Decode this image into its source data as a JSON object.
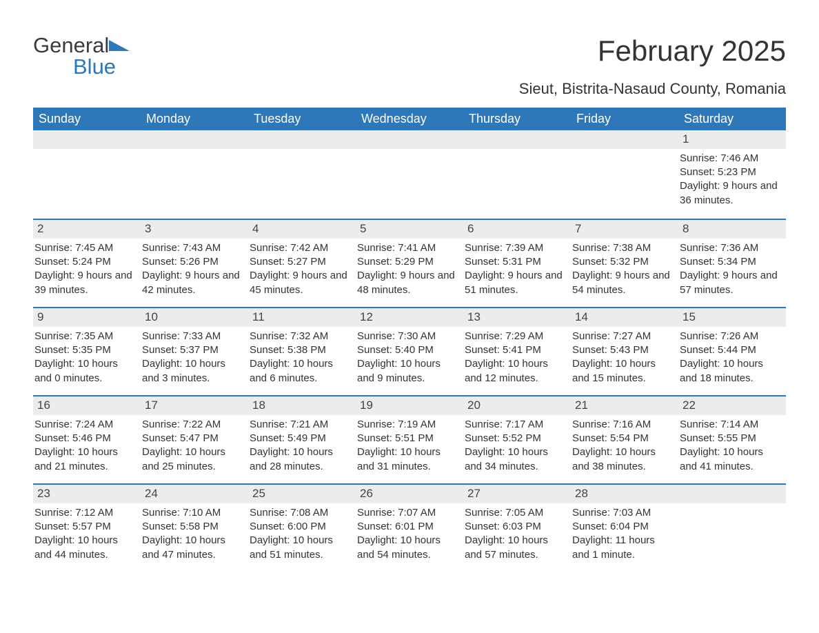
{
  "logo": {
    "text_general": "General",
    "text_blue": "Blue",
    "icon_color": "#2e77b8"
  },
  "title": "February 2025",
  "location": "Sieut, Bistrita-Nasaud County, Romania",
  "weekday_header_bg": "#2e77b8",
  "weekday_header_fg": "#ffffff",
  "daynum_bar_bg": "#ececec",
  "week_border_color": "#2e77b8",
  "text_color": "#333333",
  "background_color": "#ffffff",
  "weekdays": [
    "Sunday",
    "Monday",
    "Tuesday",
    "Wednesday",
    "Thursday",
    "Friday",
    "Saturday"
  ],
  "weeks": [
    [
      {
        "day": "",
        "sunrise": "",
        "sunset": "",
        "daylight": ""
      },
      {
        "day": "",
        "sunrise": "",
        "sunset": "",
        "daylight": ""
      },
      {
        "day": "",
        "sunrise": "",
        "sunset": "",
        "daylight": ""
      },
      {
        "day": "",
        "sunrise": "",
        "sunset": "",
        "daylight": ""
      },
      {
        "day": "",
        "sunrise": "",
        "sunset": "",
        "daylight": ""
      },
      {
        "day": "",
        "sunrise": "",
        "sunset": "",
        "daylight": ""
      },
      {
        "day": "1",
        "sunrise": "Sunrise: 7:46 AM",
        "sunset": "Sunset: 5:23 PM",
        "daylight": "Daylight: 9 hours and 36 minutes."
      }
    ],
    [
      {
        "day": "2",
        "sunrise": "Sunrise: 7:45 AM",
        "sunset": "Sunset: 5:24 PM",
        "daylight": "Daylight: 9 hours and 39 minutes."
      },
      {
        "day": "3",
        "sunrise": "Sunrise: 7:43 AM",
        "sunset": "Sunset: 5:26 PM",
        "daylight": "Daylight: 9 hours and 42 minutes."
      },
      {
        "day": "4",
        "sunrise": "Sunrise: 7:42 AM",
        "sunset": "Sunset: 5:27 PM",
        "daylight": "Daylight: 9 hours and 45 minutes."
      },
      {
        "day": "5",
        "sunrise": "Sunrise: 7:41 AM",
        "sunset": "Sunset: 5:29 PM",
        "daylight": "Daylight: 9 hours and 48 minutes."
      },
      {
        "day": "6",
        "sunrise": "Sunrise: 7:39 AM",
        "sunset": "Sunset: 5:31 PM",
        "daylight": "Daylight: 9 hours and 51 minutes."
      },
      {
        "day": "7",
        "sunrise": "Sunrise: 7:38 AM",
        "sunset": "Sunset: 5:32 PM",
        "daylight": "Daylight: 9 hours and 54 minutes."
      },
      {
        "day": "8",
        "sunrise": "Sunrise: 7:36 AM",
        "sunset": "Sunset: 5:34 PM",
        "daylight": "Daylight: 9 hours and 57 minutes."
      }
    ],
    [
      {
        "day": "9",
        "sunrise": "Sunrise: 7:35 AM",
        "sunset": "Sunset: 5:35 PM",
        "daylight": "Daylight: 10 hours and 0 minutes."
      },
      {
        "day": "10",
        "sunrise": "Sunrise: 7:33 AM",
        "sunset": "Sunset: 5:37 PM",
        "daylight": "Daylight: 10 hours and 3 minutes."
      },
      {
        "day": "11",
        "sunrise": "Sunrise: 7:32 AM",
        "sunset": "Sunset: 5:38 PM",
        "daylight": "Daylight: 10 hours and 6 minutes."
      },
      {
        "day": "12",
        "sunrise": "Sunrise: 7:30 AM",
        "sunset": "Sunset: 5:40 PM",
        "daylight": "Daylight: 10 hours and 9 minutes."
      },
      {
        "day": "13",
        "sunrise": "Sunrise: 7:29 AM",
        "sunset": "Sunset: 5:41 PM",
        "daylight": "Daylight: 10 hours and 12 minutes."
      },
      {
        "day": "14",
        "sunrise": "Sunrise: 7:27 AM",
        "sunset": "Sunset: 5:43 PM",
        "daylight": "Daylight: 10 hours and 15 minutes."
      },
      {
        "day": "15",
        "sunrise": "Sunrise: 7:26 AM",
        "sunset": "Sunset: 5:44 PM",
        "daylight": "Daylight: 10 hours and 18 minutes."
      }
    ],
    [
      {
        "day": "16",
        "sunrise": "Sunrise: 7:24 AM",
        "sunset": "Sunset: 5:46 PM",
        "daylight": "Daylight: 10 hours and 21 minutes."
      },
      {
        "day": "17",
        "sunrise": "Sunrise: 7:22 AM",
        "sunset": "Sunset: 5:47 PM",
        "daylight": "Daylight: 10 hours and 25 minutes."
      },
      {
        "day": "18",
        "sunrise": "Sunrise: 7:21 AM",
        "sunset": "Sunset: 5:49 PM",
        "daylight": "Daylight: 10 hours and 28 minutes."
      },
      {
        "day": "19",
        "sunrise": "Sunrise: 7:19 AM",
        "sunset": "Sunset: 5:51 PM",
        "daylight": "Daylight: 10 hours and 31 minutes."
      },
      {
        "day": "20",
        "sunrise": "Sunrise: 7:17 AM",
        "sunset": "Sunset: 5:52 PM",
        "daylight": "Daylight: 10 hours and 34 minutes."
      },
      {
        "day": "21",
        "sunrise": "Sunrise: 7:16 AM",
        "sunset": "Sunset: 5:54 PM",
        "daylight": "Daylight: 10 hours and 38 minutes."
      },
      {
        "day": "22",
        "sunrise": "Sunrise: 7:14 AM",
        "sunset": "Sunset: 5:55 PM",
        "daylight": "Daylight: 10 hours and 41 minutes."
      }
    ],
    [
      {
        "day": "23",
        "sunrise": "Sunrise: 7:12 AM",
        "sunset": "Sunset: 5:57 PM",
        "daylight": "Daylight: 10 hours and 44 minutes."
      },
      {
        "day": "24",
        "sunrise": "Sunrise: 7:10 AM",
        "sunset": "Sunset: 5:58 PM",
        "daylight": "Daylight: 10 hours and 47 minutes."
      },
      {
        "day": "25",
        "sunrise": "Sunrise: 7:08 AM",
        "sunset": "Sunset: 6:00 PM",
        "daylight": "Daylight: 10 hours and 51 minutes."
      },
      {
        "day": "26",
        "sunrise": "Sunrise: 7:07 AM",
        "sunset": "Sunset: 6:01 PM",
        "daylight": "Daylight: 10 hours and 54 minutes."
      },
      {
        "day": "27",
        "sunrise": "Sunrise: 7:05 AM",
        "sunset": "Sunset: 6:03 PM",
        "daylight": "Daylight: 10 hours and 57 minutes."
      },
      {
        "day": "28",
        "sunrise": "Sunrise: 7:03 AM",
        "sunset": "Sunset: 6:04 PM",
        "daylight": "Daylight: 11 hours and 1 minute."
      },
      {
        "day": "",
        "sunrise": "",
        "sunset": "",
        "daylight": ""
      }
    ]
  ]
}
